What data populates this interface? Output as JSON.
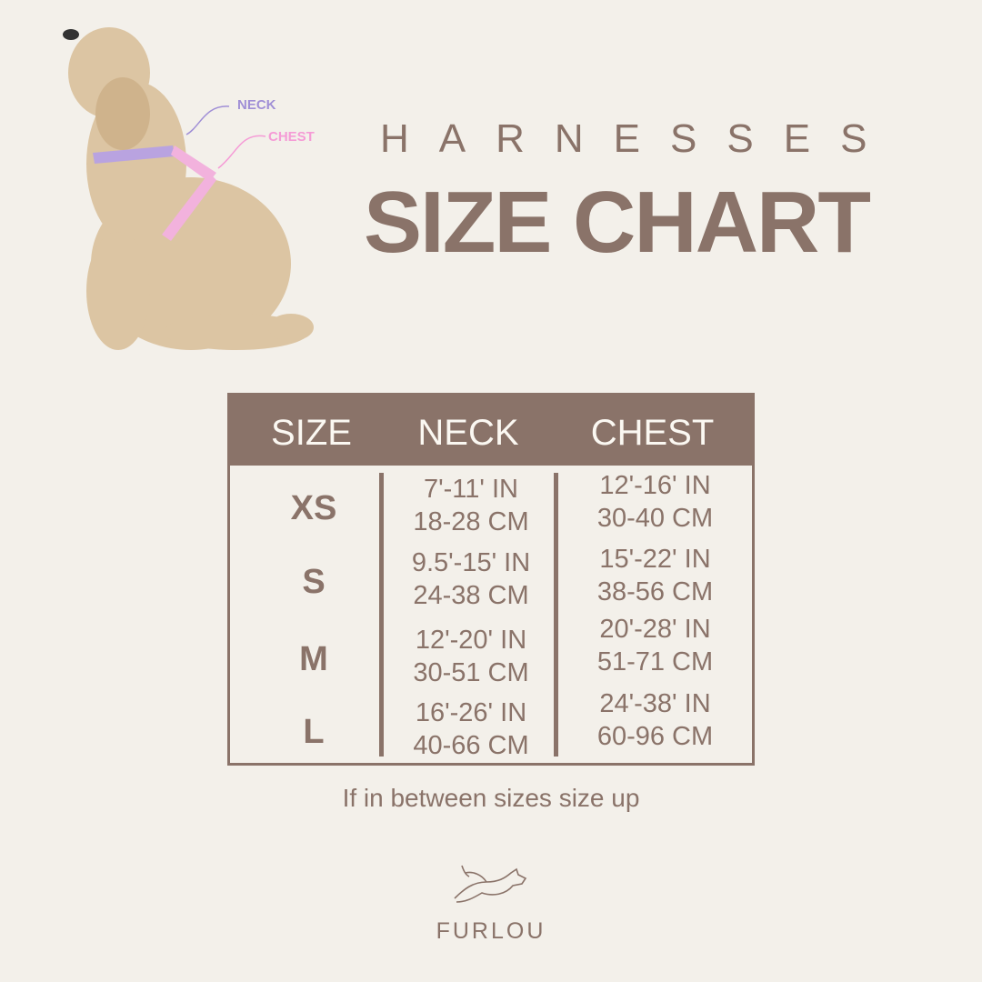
{
  "photo": {
    "labels": {
      "neck": "NECK",
      "chest": "CHEST"
    },
    "colors": {
      "neck": "#a08fd6",
      "chest": "#f59bd6"
    }
  },
  "title": {
    "small": "HARNESSES",
    "big": "SIZE CHART"
  },
  "table": {
    "headers": [
      "SIZE",
      "NECK",
      "CHEST"
    ],
    "rows": [
      {
        "size": "XS",
        "neck_in": "7'-11' IN",
        "neck_cm": "18-28 CM",
        "chest_in": "12'-16' IN",
        "chest_cm": "30-40 CM"
      },
      {
        "size": "S",
        "neck_in": "9.5'-15' IN",
        "neck_cm": "24-38 CM",
        "chest_in": "15'-22' IN",
        "chest_cm": "38-56 CM"
      },
      {
        "size": "M",
        "neck_in": "12'-20' IN",
        "neck_cm": "30-51 CM",
        "chest_in": "20'-28' IN",
        "chest_cm": "51-71 CM"
      },
      {
        "size": "L",
        "neck_in": "16'-26' IN",
        "neck_cm": "40-66 CM",
        "chest_in": "24'-38' IN",
        "chest_cm": "60-96 CM"
      }
    ]
  },
  "note": "If in between sizes size up",
  "brand": "FURLOU",
  "colors": {
    "background": "#f3f0ea",
    "accent": "#8a7369",
    "header_text": "#fbf8f2"
  }
}
